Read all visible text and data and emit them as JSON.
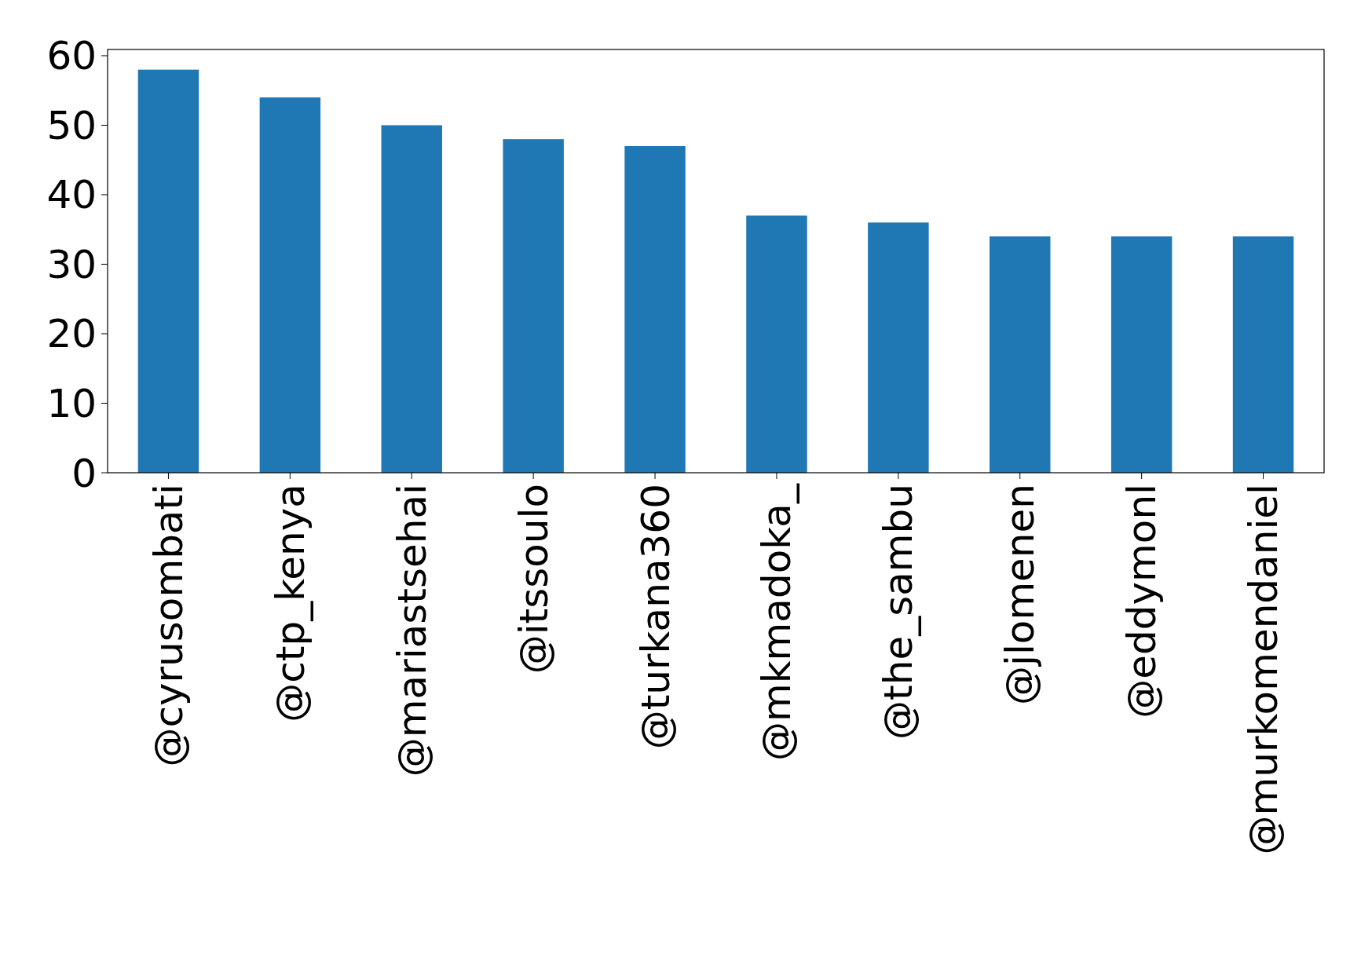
{
  "chart_data": {
    "type": "bar",
    "categories": [
      "@cyrusombati",
      "@ctp_kenya",
      "@mariastsehai",
      "@itssoulo",
      "@turkana360",
      "@mkmadoka_",
      "@the_sambu",
      "@jlomenen",
      "@eddymonl",
      "@murkomendaniel"
    ],
    "values": [
      58,
      54,
      50,
      48,
      47,
      37,
      36,
      34,
      34,
      34
    ],
    "color": "#1f77b4",
    "ylim": [
      0,
      60.9
    ],
    "yticks": [
      0,
      10,
      20,
      30,
      40,
      50,
      60
    ],
    "grid": false
  }
}
